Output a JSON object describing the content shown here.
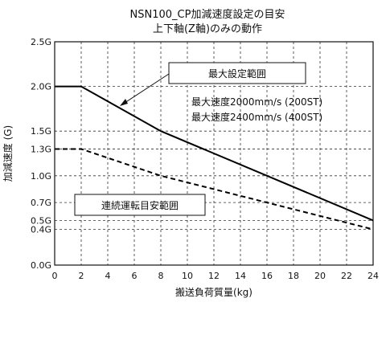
{
  "chart_data": {
    "type": "line",
    "title": "NSN100_CP加減速度設定の目安",
    "subtitle": "上下軸(Z軸)のみの動作",
    "xlabel": "搬送負荷質量(kg)",
    "ylabel": "加減速度 (G)",
    "xlim": [
      0,
      24
    ],
    "ylim": [
      0,
      2.5
    ],
    "x_ticks": [
      0,
      2,
      4,
      6,
      8,
      10,
      12,
      14,
      16,
      18,
      20,
      22,
      24
    ],
    "x_tick_labels": [
      "0",
      "2",
      "4",
      "6",
      "8",
      "10",
      "12",
      "14",
      "16",
      "18",
      "20",
      "22",
      "24"
    ],
    "y_ticks": [
      0,
      0.4,
      0.5,
      0.7,
      1.0,
      1.3,
      1.5,
      2.0,
      2.5
    ],
    "y_tick_labels": [
      "0.0G",
      "0.4G",
      "0.5G",
      "0.7G",
      "1.0G",
      "1.3G",
      "1.5G",
      "2.0G",
      "2.5G"
    ],
    "grid": true,
    "series": [
      {
        "name": "最大設定範囲",
        "style": "solid",
        "x": [
          0,
          2,
          8,
          24
        ],
        "y": [
          2.0,
          2.0,
          1.5,
          0.5
        ]
      },
      {
        "name": "連続運転目安範囲",
        "style": "dashed",
        "x": [
          0,
          2,
          8,
          24
        ],
        "y": [
          1.3,
          1.3,
          1.0,
          0.4
        ]
      }
    ],
    "annotations": {
      "max_range_label": "最大設定範囲",
      "speed_line_1": "最大速度2000mm/s (200ST)",
      "speed_line_2": "最大速度2400mm/s (400ST)",
      "continuous_label": "連続運転目安範囲"
    },
    "colors": {
      "line": "#000000",
      "grid": "#333333"
    }
  }
}
